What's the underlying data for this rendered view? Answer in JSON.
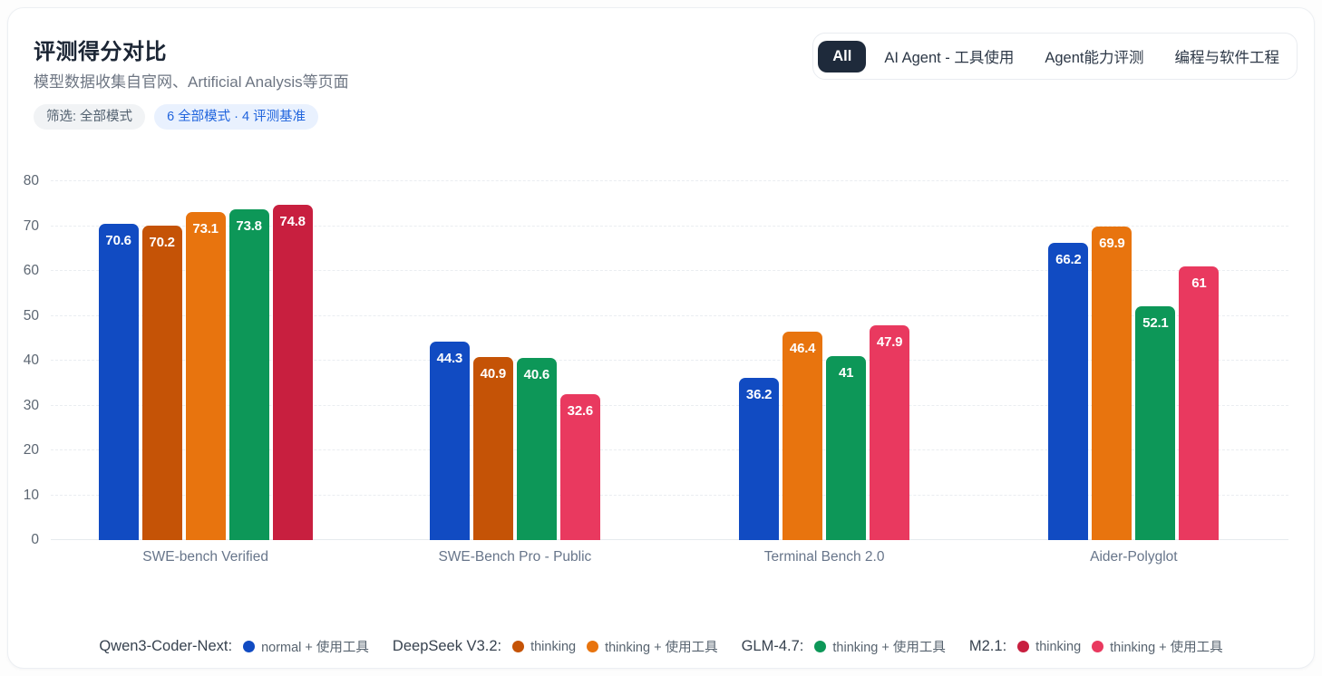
{
  "header": {
    "title": "评测得分对比",
    "subtitle": "模型数据收集自官网、Artificial Analysis等页面"
  },
  "filters": {
    "mode_pill": "筛选: 全部模式",
    "counts_pill": "6 全部模式 · 4 评测基准"
  },
  "tabs": {
    "active": "All",
    "items": [
      "All",
      "AI Agent - 工具使用",
      "Agent能力评测",
      "编程与软件工程"
    ]
  },
  "chart_data": {
    "type": "bar",
    "title": "评测得分对比",
    "categories": [
      "SWE-bench Verified",
      "SWE-Bench Pro - Public",
      "Terminal Bench 2.0",
      "Aider-Polyglot"
    ],
    "series": [
      {
        "id": "qwen3-coder-next-normal-tools",
        "model": "Qwen3-Coder-Next",
        "mode": "normal + 使用工具",
        "color": "#114bc2",
        "values": [
          70.6,
          44.3,
          36.2,
          66.2
        ]
      },
      {
        "id": "deepseek-v32-thinking",
        "model": "DeepSeek V3.2",
        "mode": "thinking",
        "color": "#c55306",
        "values": [
          70.2,
          40.9,
          null,
          null
        ]
      },
      {
        "id": "deepseek-v32-thinking-tools",
        "model": "DeepSeek V3.2",
        "mode": "thinking + 使用工具",
        "color": "#e8740e",
        "values": [
          73.1,
          null,
          46.4,
          69.9
        ]
      },
      {
        "id": "glm-47-thinking-tools",
        "model": "GLM-4.7",
        "mode": "thinking + 使用工具",
        "color": "#0d9758",
        "values": [
          73.8,
          40.6,
          41,
          52.1
        ]
      },
      {
        "id": "m21-thinking",
        "model": "M2.1",
        "mode": "thinking",
        "color": "#c81f3f",
        "values": [
          74.8,
          null,
          null,
          null
        ]
      },
      {
        "id": "m21-thinking-tools",
        "model": "M2.1",
        "mode": "thinking + 使用工具",
        "color": "#e9395f",
        "values": [
          null,
          32.6,
          47.9,
          61
        ]
      }
    ],
    "xlabel": "",
    "ylabel": "",
    "ylim": [
      0,
      80
    ],
    "yticks": [
      0,
      10,
      20,
      30,
      40,
      50,
      60,
      70,
      80
    ],
    "grid": true,
    "gridline_style": "dashed",
    "value_labels": "inside-top",
    "legend_position": "bottom"
  },
  "legend": {
    "groups": [
      {
        "model": "Qwen3-Coder-Next:",
        "entries": [
          {
            "label": "normal + 使用工具",
            "color": "#114bc2"
          }
        ]
      },
      {
        "model": "DeepSeek V3.2:",
        "entries": [
          {
            "label": "thinking",
            "color": "#c55306"
          },
          {
            "label": "thinking + 使用工具",
            "color": "#e8740e"
          }
        ]
      },
      {
        "model": "GLM-4.7:",
        "entries": [
          {
            "label": "thinking + 使用工具",
            "color": "#0d9758"
          }
        ]
      },
      {
        "model": "M2.1:",
        "entries": [
          {
            "label": "thinking",
            "color": "#c81f3f"
          },
          {
            "label": "thinking + 使用工具",
            "color": "#e9395f"
          }
        ]
      }
    ]
  },
  "colors": {
    "active_tab_bg": "#1e2a3b",
    "pill_blue_bg": "#e9f1fe",
    "pill_blue_text": "#2064dd",
    "card_border": "#eceff3"
  }
}
